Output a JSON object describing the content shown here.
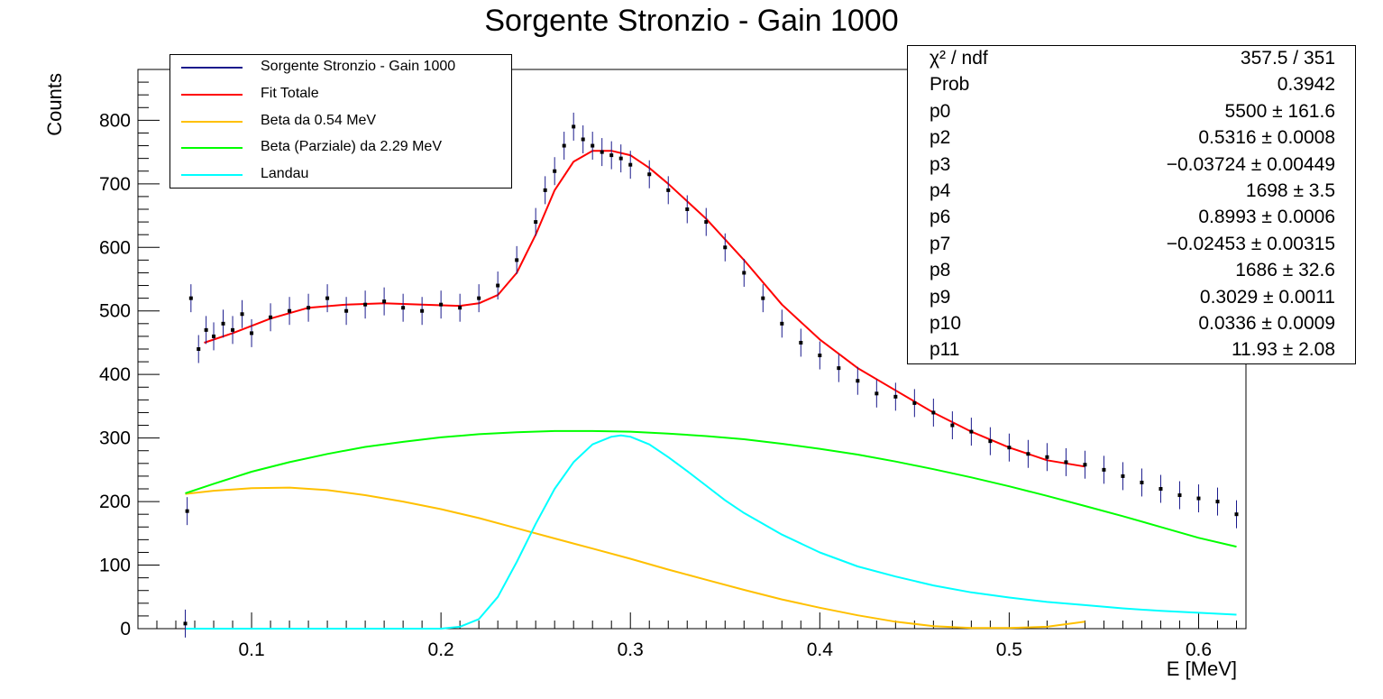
{
  "chart_data": {
    "type": "scatter",
    "title": "Sorgente Stronzio - Gain 1000",
    "xlabel": "E [MeV]",
    "ylabel": "Counts",
    "xlim": [
      0.04,
      0.625
    ],
    "ylim": [
      0,
      880
    ],
    "x_ticks": [
      0.1,
      0.2,
      0.3,
      0.4,
      0.5,
      0.6
    ],
    "y_ticks": [
      0,
      100,
      200,
      300,
      400,
      500,
      600,
      700,
      800
    ],
    "grid": false,
    "legend_position": "top-left",
    "series": [
      {
        "name": "Sorgente Stronzio - Gain 1000",
        "style": "points-with-errors",
        "color": "#000000",
        "error_color": "#1a1a8c",
        "x": [
          0.065,
          0.066,
          0.068,
          0.072,
          0.076,
          0.08,
          0.085,
          0.09,
          0.095,
          0.1,
          0.11,
          0.12,
          0.13,
          0.14,
          0.15,
          0.16,
          0.17,
          0.18,
          0.19,
          0.2,
          0.21,
          0.22,
          0.23,
          0.24,
          0.25,
          0.255,
          0.26,
          0.265,
          0.27,
          0.275,
          0.28,
          0.285,
          0.29,
          0.295,
          0.3,
          0.31,
          0.32,
          0.33,
          0.34,
          0.35,
          0.36,
          0.37,
          0.38,
          0.39,
          0.4,
          0.41,
          0.42,
          0.43,
          0.44,
          0.45,
          0.46,
          0.47,
          0.48,
          0.49,
          0.5,
          0.51,
          0.52,
          0.53,
          0.54,
          0.55,
          0.56,
          0.57,
          0.58,
          0.59,
          0.6,
          0.61,
          0.62
        ],
        "y": [
          8,
          185,
          520,
          440,
          470,
          460,
          480,
          470,
          495,
          465,
          490,
          500,
          505,
          520,
          500,
          510,
          515,
          505,
          500,
          510,
          505,
          520,
          540,
          580,
          640,
          690,
          720,
          760,
          790,
          770,
          760,
          750,
          745,
          740,
          730,
          715,
          690,
          660,
          640,
          600,
          560,
          520,
          480,
          450,
          430,
          410,
          390,
          370,
          365,
          355,
          340,
          320,
          310,
          295,
          285,
          275,
          270,
          262,
          258,
          250,
          240,
          230,
          220,
          210,
          205,
          200,
          180
        ],
        "y_error": 22
      },
      {
        "name": "Fit Totale",
        "style": "line",
        "color": "#ff0000",
        "x": [
          0.075,
          0.09,
          0.11,
          0.13,
          0.15,
          0.17,
          0.19,
          0.21,
          0.22,
          0.23,
          0.24,
          0.25,
          0.26,
          0.27,
          0.28,
          0.29,
          0.3,
          0.31,
          0.32,
          0.34,
          0.36,
          0.38,
          0.4,
          0.42,
          0.44,
          0.46,
          0.48,
          0.5,
          0.52,
          0.54
        ],
        "y": [
          450,
          465,
          488,
          505,
          510,
          512,
          510,
          508,
          512,
          525,
          560,
          620,
          690,
          735,
          752,
          752,
          745,
          725,
          700,
          645,
          580,
          510,
          455,
          410,
          375,
          340,
          310,
          285,
          265,
          255
        ]
      },
      {
        "name": "Beta da 0.54 MeV",
        "style": "line",
        "color": "#ffc000",
        "x": [
          0.065,
          0.08,
          0.1,
          0.12,
          0.14,
          0.16,
          0.18,
          0.2,
          0.22,
          0.24,
          0.26,
          0.28,
          0.3,
          0.32,
          0.34,
          0.36,
          0.38,
          0.4,
          0.42,
          0.44,
          0.46,
          0.48,
          0.5,
          0.52,
          0.54
        ],
        "y": [
          212,
          217,
          221,
          222,
          218,
          210,
          200,
          188,
          174,
          158,
          142,
          126,
          110,
          93,
          77,
          61,
          46,
          33,
          21,
          11,
          4,
          1,
          1,
          3,
          11
        ]
      },
      {
        "name": "Beta (Parziale) da 2.29 MeV",
        "style": "line",
        "color": "#00ff00",
        "x": [
          0.065,
          0.08,
          0.1,
          0.12,
          0.14,
          0.16,
          0.18,
          0.2,
          0.22,
          0.24,
          0.26,
          0.28,
          0.3,
          0.32,
          0.34,
          0.36,
          0.38,
          0.4,
          0.42,
          0.44,
          0.46,
          0.48,
          0.5,
          0.52,
          0.54,
          0.56,
          0.58,
          0.6,
          0.62
        ],
        "y": [
          213,
          228,
          247,
          262,
          275,
          286,
          294,
          301,
          306,
          309,
          311,
          311,
          310,
          307,
          303,
          298,
          291,
          283,
          274,
          263,
          251,
          238,
          224,
          209,
          193,
          177,
          160,
          143,
          129
        ]
      },
      {
        "name": "Landau",
        "style": "line",
        "color": "#00ffff",
        "x": [
          0.065,
          0.1,
          0.15,
          0.2,
          0.21,
          0.22,
          0.23,
          0.24,
          0.25,
          0.26,
          0.27,
          0.28,
          0.29,
          0.295,
          0.3,
          0.31,
          0.32,
          0.33,
          0.34,
          0.35,
          0.36,
          0.38,
          0.4,
          0.42,
          0.44,
          0.46,
          0.48,
          0.5,
          0.52,
          0.54,
          0.56,
          0.58,
          0.6,
          0.62
        ],
        "y": [
          0,
          0,
          0,
          0,
          3,
          15,
          50,
          105,
          165,
          220,
          262,
          290,
          302,
          304,
          302,
          290,
          270,
          248,
          225,
          202,
          182,
          148,
          120,
          98,
          82,
          68,
          57,
          49,
          42,
          37,
          32,
          28,
          25,
          22
        ]
      }
    ]
  },
  "stats_box": {
    "rows": [
      {
        "name": "χ² / ndf",
        "value": "357.5 / 351"
      },
      {
        "name": "Prob",
        "value": "0.3942"
      },
      {
        "name": "p0",
        "value": "5500 ± 161.6"
      },
      {
        "name": "p2",
        "value": "0.5316 ± 0.0008"
      },
      {
        "name": "p3",
        "value": "−0.03724 ± 0.00449"
      },
      {
        "name": "p4",
        "value": "1698 ± 3.5"
      },
      {
        "name": "p6",
        "value": "0.8993 ± 0.0006"
      },
      {
        "name": "p7",
        "value": "−0.02453 ± 0.00315"
      },
      {
        "name": "p8",
        "value": "1686 ± 32.6"
      },
      {
        "name": "p9",
        "value": "0.3029 ± 0.0011"
      },
      {
        "name": "p10",
        "value": "0.0336 ± 0.0009"
      },
      {
        "name": "p11",
        "value": "11.93 ± 2.08"
      }
    ]
  }
}
